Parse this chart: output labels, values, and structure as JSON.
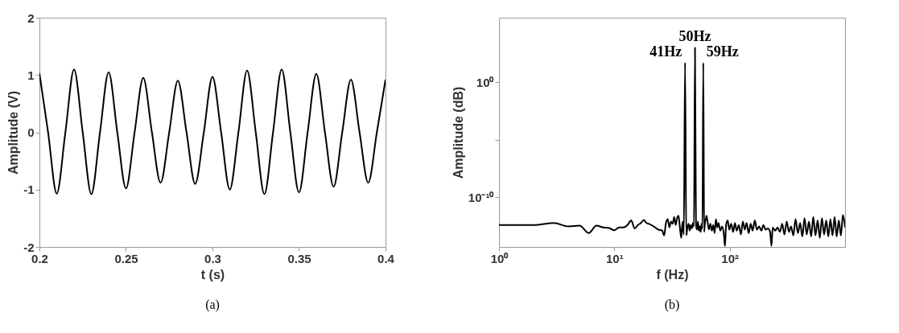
{
  "chart_data": [
    {
      "type": "line",
      "xlabel": "t (s)",
      "ylabel": "Amplitude (V)",
      "annotations": [
        "(a)"
      ],
      "xlim": [
        0.2,
        0.4
      ],
      "xticks": [
        0.2,
        0.25,
        0.3,
        0.35,
        0.4
      ],
      "ylim": [
        -2,
        2
      ],
      "yticks": [
        -2,
        -1,
        0,
        1,
        2
      ],
      "x": [
        0.2,
        0.205,
        0.21,
        0.215,
        0.22,
        0.225,
        0.23,
        0.235,
        0.24,
        0.245,
        0.25,
        0.255,
        0.26,
        0.265,
        0.27,
        0.275,
        0.28,
        0.285,
        0.29,
        0.295,
        0.3,
        0.305,
        0.31,
        0.315,
        0.32,
        0.325,
        0.33,
        0.335,
        0.34,
        0.345,
        0.35,
        0.355,
        0.36,
        0.365,
        0.37,
        0.375,
        0.38,
        0.385,
        0.39,
        0.395,
        0.4
      ],
      "series": [
        {
          "color": "#000000",
          "values": [
            1.03,
            0,
            -1.07,
            0,
            1.1,
            0,
            -1.08,
            0,
            1.05,
            0,
            -0.98,
            0,
            0.95,
            0,
            -0.88,
            0,
            0.9,
            0,
            -0.9,
            0,
            0.97,
            0,
            -1.0,
            0,
            1.08,
            0,
            -1.08,
            0,
            1.1,
            0,
            -1.05,
            0,
            1.02,
            0,
            -0.95,
            0,
            0.92,
            0,
            -0.88,
            0,
            0.92
          ]
        }
      ]
    },
    {
      "type": "line",
      "xlabel": "f (Hz)",
      "ylabel": "Amplitude (dB)",
      "log": "xy",
      "annotations": [
        {
          "text": "41Hz",
          "x": 41,
          "y": 50
        },
        {
          "text": "50Hz",
          "x": 50,
          "y": 1000
        },
        {
          "text": "59Hz",
          "x": 59,
          "y": 50
        },
        "(b)"
      ],
      "xlim": [
        1,
        1000
      ],
      "xticks": [
        {
          "value": 1,
          "label": "10⁰"
        },
        {
          "value": 10,
          "label": "10¹"
        },
        {
          "value": 100,
          "label": "10²"
        }
      ],
      "ylim": [
        5e-15,
        400000
      ],
      "yticks": [
        {
          "value": 1e-10,
          "label": "10⁻¹⁰"
        },
        {
          "value": 1e-05,
          "label": null
        },
        {
          "value": 1,
          "label": "10⁰"
        }
      ],
      "x": [
        1,
        2,
        3,
        4,
        5,
        6,
        7,
        8,
        9,
        10,
        11,
        12,
        13,
        14,
        15,
        16,
        17,
        18,
        19,
        20,
        22,
        24,
        26,
        27,
        28,
        29,
        30,
        31,
        32,
        33,
        34,
        35,
        36,
        37,
        38,
        39,
        40,
        41,
        42,
        43,
        44,
        45,
        46,
        47,
        48,
        49,
        50,
        51,
        52,
        53,
        54,
        55,
        56,
        57,
        58,
        59,
        60,
        61,
        62,
        63,
        64,
        66,
        68,
        70,
        72,
        74,
        76,
        78,
        80,
        83,
        86,
        89,
        91,
        93,
        96,
        99,
        103,
        107,
        111,
        115,
        120,
        125,
        130,
        135,
        140,
        146,
        152,
        158,
        165,
        172,
        180,
        188,
        196,
        205,
        214,
        224,
        230,
        236,
        248,
        260,
        272,
        285,
        298,
        312,
        326,
        340,
        356,
        372,
        390,
        408,
        426,
        445,
        465,
        486,
        508,
        530,
        554,
        578,
        604,
        630,
        658,
        686,
        716,
        746,
        778,
        812,
        846,
        882,
        920,
        958,
        1000
      ],
      "series": [
        {
          "color": "#000000",
          "values": [
            4e-13,
            4e-13,
            6e-13,
            3e-13,
            3.5e-13,
            8e-14,
            3.5e-13,
            2.5e-13,
            2.2e-13,
            1.4e-13,
            2.5e-13,
            2.5e-13,
            4e-13,
            1e-12,
            2e-13,
            4e-13,
            6e-13,
            1.1e-12,
            6e-13,
            5e-13,
            3e-13,
            1.6e-13,
            1.3e-13,
            5e-14,
            6e-13,
            1.3e-12,
            2.5e-13,
            8e-13,
            5e-13,
            2e-12,
            4e-13,
            1.6e-12,
            2.5e-12,
            2.5e-13,
            3e-14,
            8e-13,
            6e-14,
            50,
            5e-14,
            2.5e-13,
            5e-13,
            1.3e-13,
            4e-13,
            2e-13,
            6e-13,
            3e-13,
            1000,
            4e-13,
            1.6e-13,
            8e-13,
            1.3e-13,
            3e-13,
            1e-13,
            5e-13,
            2e-13,
            50,
            1e-13,
            6e-13,
            1.3e-12,
            2.5e-12,
            1e-12,
            1.6e-13,
            5e-13,
            1.3e-13,
            4e-13,
            8e-14,
            1.3e-12,
            2.5e-13,
            6e-13,
            1.3e-13,
            3e-13,
            6e-14,
            6e-15,
            4e-13,
            1e-12,
            1.6e-13,
            5e-13,
            1e-13,
            6e-13,
            1.3e-13,
            4e-13,
            6e-14,
            8e-13,
            1.6e-13,
            6e-13,
            8e-14,
            5e-13,
            1.3e-13,
            1e-12,
            1.6e-13,
            3e-13,
            1.3e-13,
            4e-13,
            1.6e-13,
            2e-13,
            1e-13,
            6e-15,
            2.5e-13,
            1.3e-13,
            2.5e-13,
            1e-13,
            5e-13,
            6e-14,
            8e-13,
            1e-13,
            3e-13,
            5e-14,
            1.3e-12,
            8e-14,
            6e-13,
            4e-14,
            1.6e-12,
            6e-14,
            8e-13,
            4e-14,
            2e-12,
            5e-14,
            1e-12,
            3e-14,
            1.6e-12,
            6e-14,
            1e-12,
            4e-14,
            1.3e-12,
            5e-14,
            2e-12,
            4e-14,
            1e-12,
            5e-14,
            3e-12,
            2.5e-13
          ]
        }
      ]
    }
  ]
}
